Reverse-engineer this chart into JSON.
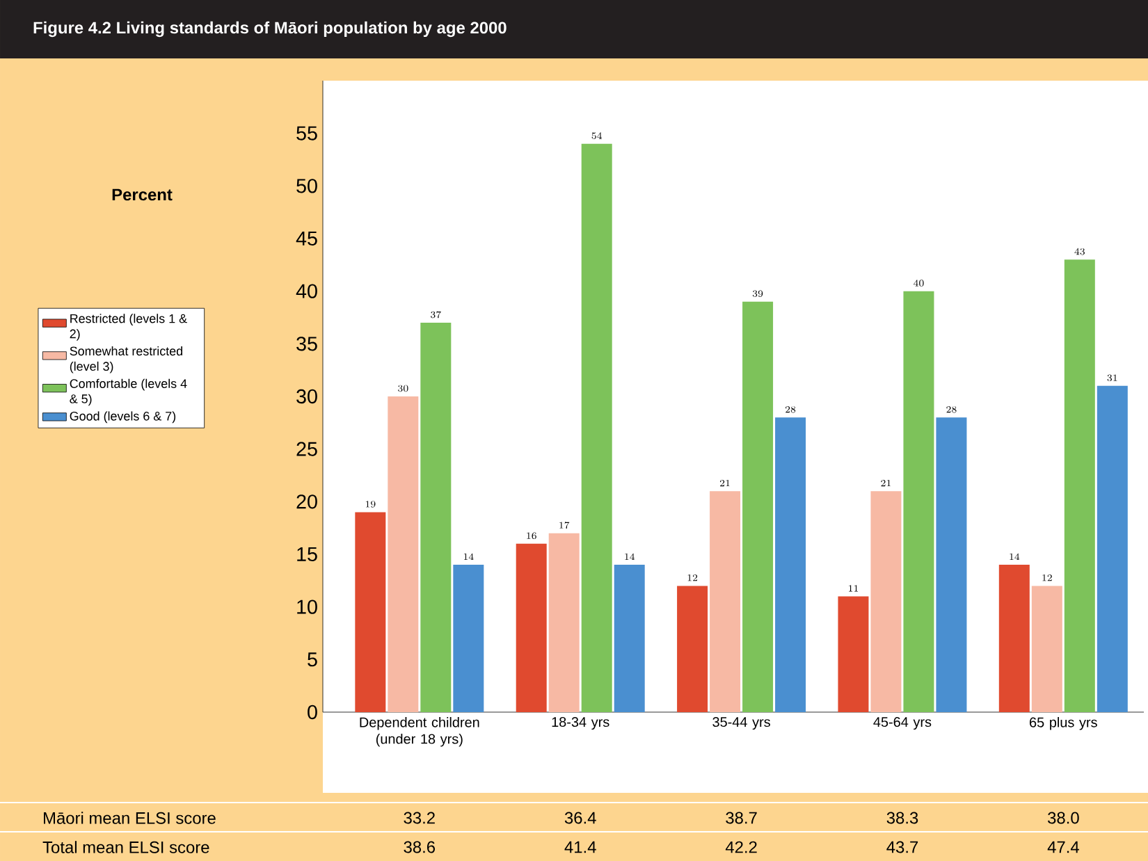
{
  "chart_data": {
    "type": "bar",
    "title": "Figure 4.2    Living standards of Māori population by age 2000",
    "categories": [
      "Dependent children (under 18 yrs)",
      "18-34 yrs",
      "35-44 yrs",
      "45-64 yrs",
      "65 plus yrs"
    ],
    "series": [
      {
        "name": "Restricted (levels 1 & 2)",
        "color": "#e04a2f",
        "values": [
          19,
          16,
          12,
          11,
          14
        ]
      },
      {
        "name": "Somewhat restricted (level 3)",
        "color": "#f7b9a4",
        "values": [
          30,
          17,
          21,
          21,
          12
        ]
      },
      {
        "name": "Comfortable (levels 4 & 5)",
        "color": "#7dc25a",
        "values": [
          37,
          54,
          39,
          40,
          43
        ]
      },
      {
        "name": "Good (levels 6 & 7)",
        "color": "#4a8fd0",
        "values": [
          14,
          14,
          28,
          28,
          31
        ]
      }
    ],
    "ylim": [
      0,
      60
    ],
    "yticks": [
      0,
      5,
      10,
      15,
      20,
      25,
      30,
      35,
      40,
      45,
      50,
      55
    ],
    "data_labels": true,
    "legend": "left",
    "grid": false,
    "annotations": [
      "Percent",
      "Māori mean ELSI score",
      "33.2",
      "36.4",
      "38.7",
      "38.3",
      "38.0",
      "Total mean ELSI score",
      "38.6",
      "41.4",
      "42.2",
      "43.7",
      "47.4"
    ]
  }
}
